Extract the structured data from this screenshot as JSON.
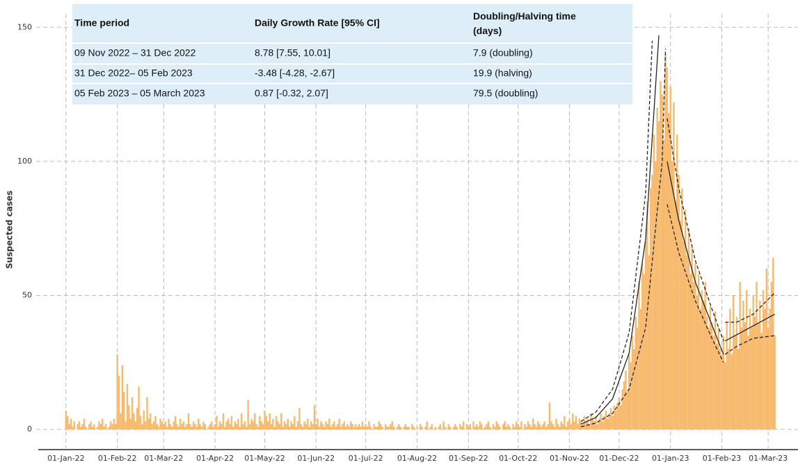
{
  "chart_data": {
    "type": "bar",
    "ylabel": "Suspected cases",
    "xlim": [
      -18,
      442
    ],
    "ylim": [
      -7,
      155
    ],
    "xticks": [
      {
        "value": 0,
        "label": "01-Jan-22"
      },
      {
        "value": 31,
        "label": "01-Feb-22"
      },
      {
        "value": 59,
        "label": "01-Mar-22"
      },
      {
        "value": 90,
        "label": "01-Apr-22"
      },
      {
        "value": 120,
        "label": "01-May-22"
      },
      {
        "value": 151,
        "label": "01-Jun-22"
      },
      {
        "value": 181,
        "label": "01-Jul-22"
      },
      {
        "value": 212,
        "label": "01-Aug-22"
      },
      {
        "value": 243,
        "label": "01-Sep-22"
      },
      {
        "value": 273,
        "label": "01-Oct-22"
      },
      {
        "value": 304,
        "label": "01-Nov-22"
      },
      {
        "value": 334,
        "label": "01-Dec-22"
      },
      {
        "value": 365,
        "label": "01-Jan-23"
      },
      {
        "value": 396,
        "label": "01-Feb-23"
      },
      {
        "value": 424,
        "label": "01-Mar-23"
      }
    ],
    "yticks": [
      0,
      50,
      100,
      150
    ],
    "grid": true,
    "series": [
      {
        "type": "bar",
        "color": "#f7b96c",
        "values": [
          7,
          5,
          2,
          4,
          1,
          3,
          0,
          2,
          3,
          1,
          2,
          4,
          1,
          0,
          2,
          3,
          1,
          2,
          0,
          1,
          3,
          2,
          4,
          1,
          2,
          0,
          1,
          3,
          2,
          4,
          2,
          28,
          20,
          6,
          24,
          14,
          3,
          17,
          9,
          4,
          12,
          6,
          3,
          8,
          16,
          5,
          2,
          7,
          3,
          12,
          4,
          6,
          2,
          3,
          5,
          2,
          1,
          4,
          3,
          2,
          3,
          1,
          4,
          2,
          1,
          3,
          5,
          2,
          1,
          4,
          2,
          3,
          1,
          2,
          6,
          2,
          1,
          3,
          2,
          1,
          4,
          2,
          1,
          3,
          2,
          0,
          1,
          2,
          3,
          1,
          2,
          5,
          1,
          3,
          2,
          6,
          1,
          3,
          4,
          2,
          5,
          1,
          3,
          2,
          4,
          1,
          6,
          2,
          3,
          1,
          11,
          2,
          4,
          3,
          6,
          2,
          1,
          5,
          3,
          2,
          7,
          5,
          3,
          6,
          2,
          4,
          1,
          5,
          3,
          2,
          6,
          1,
          3,
          2,
          4,
          1,
          3,
          2,
          5,
          1,
          3,
          8,
          2,
          1,
          3,
          2,
          4,
          1,
          3,
          2,
          9,
          2,
          4,
          1,
          3,
          2,
          1,
          3,
          2,
          4,
          1,
          2,
          3,
          1,
          2,
          4,
          1,
          2,
          3,
          1,
          2,
          1,
          3,
          2,
          1,
          2,
          1,
          2,
          1,
          3,
          1,
          2,
          1,
          3,
          1,
          0,
          2,
          1,
          1,
          3,
          2,
          1,
          0,
          2,
          1,
          1,
          2,
          3,
          1,
          0,
          1,
          2,
          1,
          0,
          1,
          2,
          1,
          1,
          0,
          2,
          1,
          0,
          1,
          0,
          2,
          1,
          0,
          1,
          3,
          0,
          1,
          2,
          0,
          1,
          0,
          1,
          2,
          0,
          3,
          1,
          0,
          2,
          1,
          0,
          1,
          2,
          1,
          0,
          2,
          1,
          3,
          0,
          2,
          1,
          2,
          0,
          3,
          1,
          2,
          1,
          3,
          2,
          0,
          1,
          2,
          3,
          1,
          0,
          2,
          1,
          3,
          2,
          1,
          0,
          2,
          3,
          1,
          2,
          1,
          0,
          2,
          1,
          3,
          2,
          1,
          3,
          0,
          2,
          1,
          3,
          2,
          1,
          4,
          2,
          1,
          3,
          2,
          1,
          2,
          3,
          1,
          2,
          10,
          3,
          2,
          1,
          4,
          2,
          1,
          3,
          2,
          5,
          1,
          3,
          4,
          2,
          6,
          3,
          5,
          2,
          4,
          3,
          2,
          5,
          3,
          4,
          2,
          6,
          4,
          3,
          5,
          2,
          4,
          6,
          3,
          5,
          7,
          4,
          6,
          8,
          5,
          9,
          7,
          10,
          12,
          9,
          15,
          18,
          22,
          14,
          28,
          25,
          35,
          30,
          42,
          38,
          55,
          45,
          62,
          58,
          70,
          85,
          65,
          90,
          95,
          110,
          100,
          120,
          115,
          130,
          125,
          108,
          140,
          135,
          118,
          128,
          100,
          122,
          85,
          110,
          95,
          78,
          90,
          70,
          82,
          65,
          75,
          58,
          68,
          55,
          62,
          50,
          58,
          45,
          52,
          48,
          55,
          42,
          38,
          46,
          40,
          35,
          44,
          32,
          38,
          30,
          28,
          35,
          25,
          40,
          30,
          45,
          28,
          50,
          35,
          42,
          30,
          55,
          38,
          48,
          40,
          52,
          35,
          45,
          38,
          50,
          42,
          55,
          40,
          48,
          36,
          52,
          45,
          60,
          38,
          45,
          55,
          64,
          35
        ]
      },
      {
        "type": "line",
        "color": "#222222",
        "dash": false,
        "x": [
          311,
          320,
          330,
          340,
          350,
          358
        ],
        "values": [
          2,
          4.5,
          11.4,
          28.4,
          71,
          147
        ]
      },
      {
        "type": "line",
        "color": "#222222",
        "dash": true,
        "x": [
          311,
          320,
          330,
          340,
          350,
          354
        ],
        "values": [
          3,
          6.5,
          15,
          36,
          88,
          145
        ]
      },
      {
        "type": "line",
        "color": "#222222",
        "dash": true,
        "x": [
          311,
          320,
          330,
          340,
          350,
          360,
          362
        ],
        "values": [
          1,
          2.4,
          6,
          15,
          38,
          100,
          142
        ]
      },
      {
        "type": "line",
        "color": "#222222",
        "dash": false,
        "x": [
          363,
          370,
          380,
          390,
          397
        ],
        "values": [
          100,
          78,
          55,
          39,
          28
        ]
      },
      {
        "type": "line",
        "color": "#222222",
        "dash": true,
        "x": [
          363,
          370,
          380,
          390,
          397
        ],
        "values": [
          116,
          90,
          63,
          45,
          33
        ]
      },
      {
        "type": "line",
        "color": "#222222",
        "dash": true,
        "x": [
          363,
          370,
          380,
          390,
          397
        ],
        "values": [
          84,
          66,
          48,
          34,
          25
        ]
      },
      {
        "type": "line",
        "color": "#222222",
        "dash": false,
        "x": [
          398,
          428
        ],
        "values": [
          33,
          43
        ]
      },
      {
        "type": "line",
        "color": "#222222",
        "dash": true,
        "x": [
          398,
          405,
          415,
          428
        ],
        "values": [
          40,
          40,
          43,
          51
        ]
      },
      {
        "type": "line",
        "color": "#222222",
        "dash": true,
        "x": [
          398,
          405,
          415,
          428
        ],
        "values": [
          28,
          31,
          34,
          35
        ]
      }
    ],
    "table": {
      "columns": [
        "Time period",
        "Daily Growth Rate [95% CI]",
        "Doubling/Halving time (days)"
      ],
      "rows": [
        [
          "09 Nov 2022 – 31 Dec 2022",
          "8.78 [7.55, 10.01]",
          "7.9 (doubling)"
        ],
        [
          "31 Dec 2022– 05 Feb 2023",
          "-3.48 [-4.28, -2.67]",
          "19.9 (halving)"
        ],
        [
          "05 Feb 2023 – 05 March 2023",
          "0.87 [-0.32, 2.07]",
          "79.5 (doubling)"
        ]
      ]
    }
  }
}
